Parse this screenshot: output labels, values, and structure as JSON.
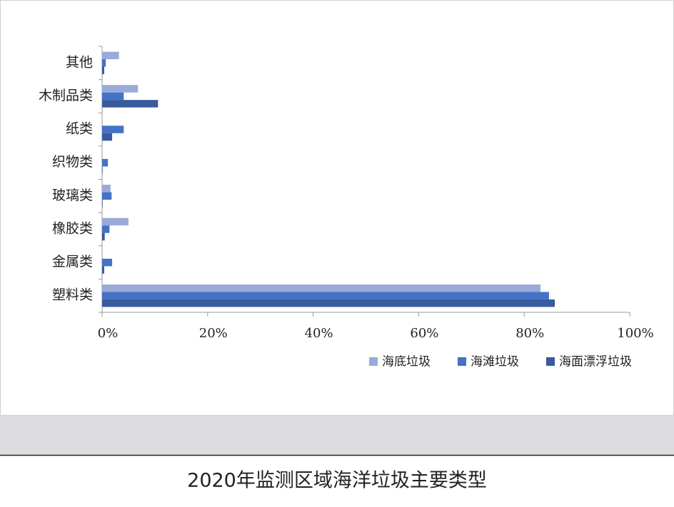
{
  "chart_data": {
    "type": "hbar",
    "title": "2020年监测区域海洋垃圾主要类型",
    "categories": [
      "其他",
      "木制品类",
      "纸类",
      "织物类",
      "玻璃类",
      "橡胶类",
      "金属类",
      "塑料类"
    ],
    "series": [
      {
        "name": "海底垃圾",
        "color": "#9aabd8",
        "values": [
          3.2,
          6.8,
          0,
          0,
          1.6,
          5.0,
          0,
          83.1
        ]
      },
      {
        "name": "海滩垃圾",
        "color": "#4472c4",
        "values": [
          0.7,
          4.1,
          4.1,
          1.1,
          1.8,
          1.4,
          1.9,
          84.7
        ]
      },
      {
        "name": "海面漂浮垃圾",
        "color": "#3a5a9e",
        "values": [
          0.4,
          10.6,
          1.9,
          0.1,
          0.1,
          0.5,
          0.4,
          85.8
        ]
      }
    ],
    "xlim": [
      0,
      100
    ],
    "xticks": [
      {
        "value": 0,
        "label": "0%"
      },
      {
        "value": 20,
        "label": "20%"
      },
      {
        "value": 40,
        "label": "40%"
      },
      {
        "value": 60,
        "label": "60%"
      },
      {
        "value": 80,
        "label": "80%"
      },
      {
        "value": 100,
        "label": "100%"
      }
    ]
  }
}
